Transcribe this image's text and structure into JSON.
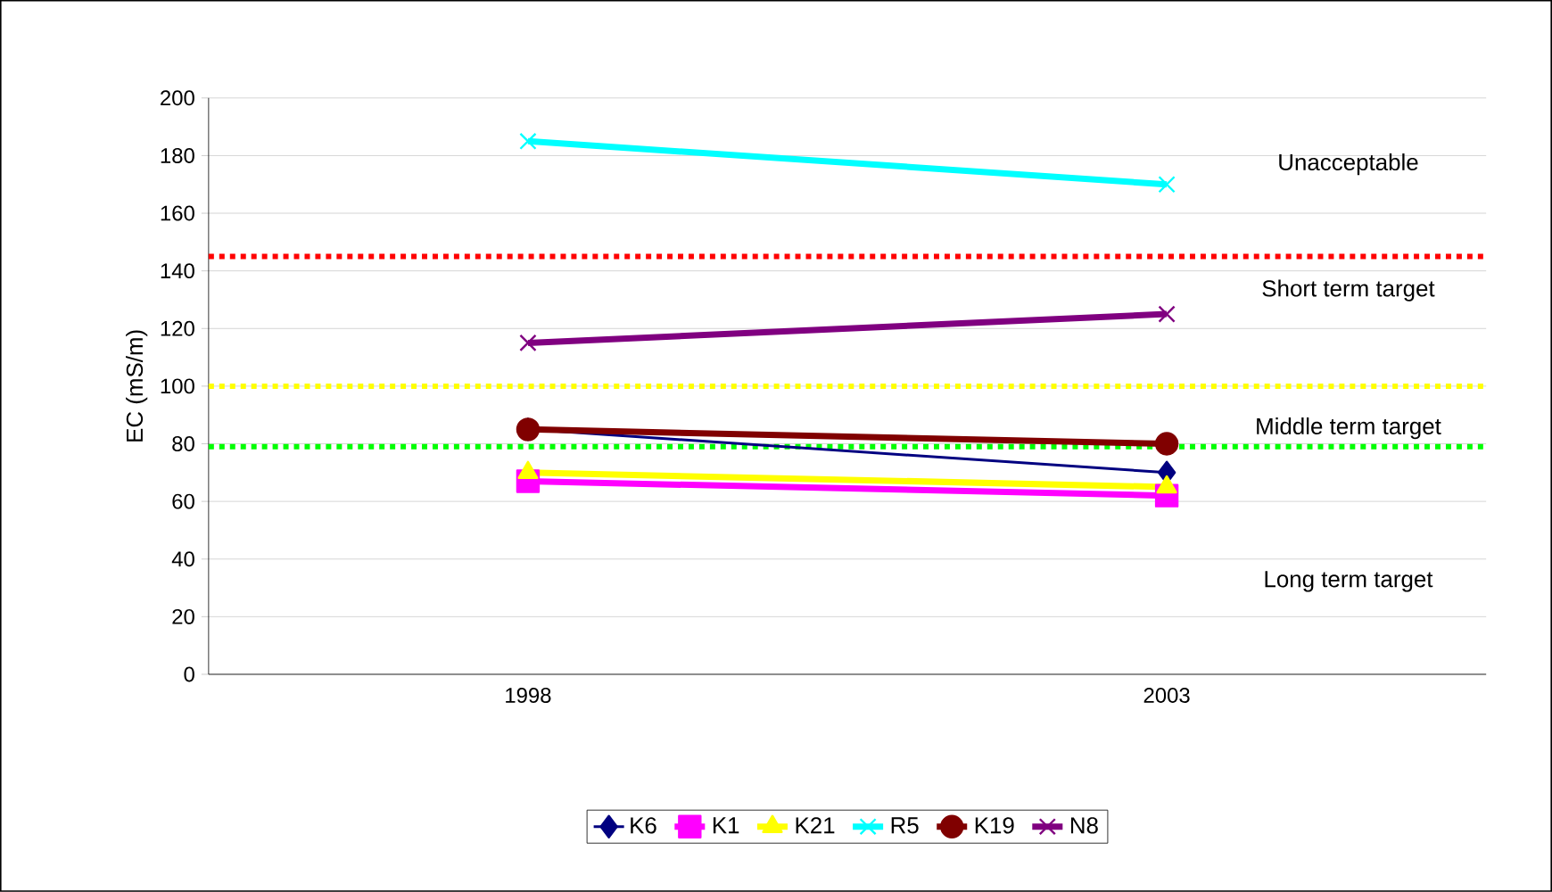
{
  "chart_data": {
    "type": "line",
    "ylabel": "EC (mS/m)",
    "categories": [
      "1998",
      "2003"
    ],
    "series": [
      {
        "name": "K6",
        "color": "#000080",
        "marker": "diamond",
        "values": [
          85,
          70
        ]
      },
      {
        "name": "K1",
        "color": "#ff00ff",
        "marker": "square",
        "values": [
          67,
          62
        ]
      },
      {
        "name": "K21",
        "color": "#ffff00",
        "marker": "triangle",
        "values": [
          70,
          65
        ]
      },
      {
        "name": "R5",
        "color": "#00ffff",
        "marker": "cross",
        "values": [
          185,
          170
        ]
      },
      {
        "name": "K19",
        "color": "#800000",
        "marker": "circle",
        "values": [
          85,
          80
        ]
      },
      {
        "name": "N8",
        "color": "#800080",
        "marker": "cross",
        "values": [
          115,
          125
        ]
      }
    ],
    "ylim": [
      0,
      200
    ],
    "yticks": [
      0,
      20,
      40,
      60,
      80,
      100,
      120,
      140,
      160,
      180,
      200
    ],
    "grid": "y",
    "legend": "bottom",
    "ref_lines": [
      {
        "axis": "y",
        "value": 145,
        "color": "#ff0000",
        "line_style": "dotted"
      },
      {
        "axis": "y",
        "value": 100,
        "color": "#ffff00",
        "line_style": "dotted"
      },
      {
        "axis": "y",
        "value": 79,
        "color": "#00ff00",
        "line_style": "dotted"
      }
    ],
    "annotations": [
      "Unacceptable",
      "Short term target",
      "Middle term target",
      "Long term target"
    ]
  }
}
